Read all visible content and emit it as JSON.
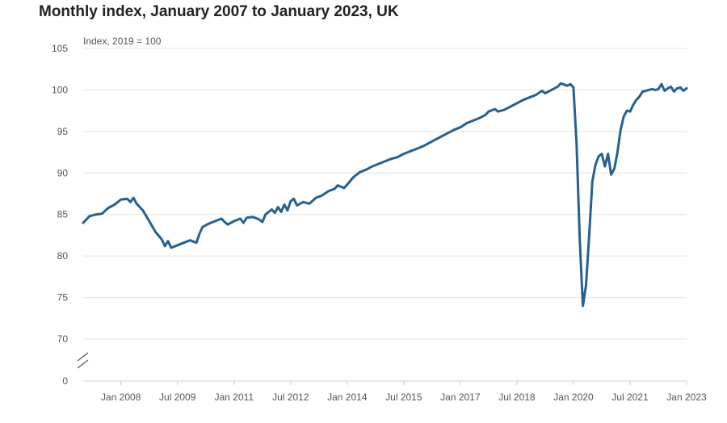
{
  "colors": {
    "line": "#27618f",
    "grid": "#e4e4e4",
    "axis": "#cccccc",
    "text": "#555555"
  },
  "chart_data": {
    "type": "line",
    "title": "Monthly index, January 2007 to January 2023, UK",
    "unit_label": "Index, 2019 = 100",
    "y_tick_labels": [
      "0",
      "70",
      "75",
      "80",
      "85",
      "90",
      "95",
      "100",
      "105"
    ],
    "y_ticks": [
      70,
      75,
      80,
      85,
      90,
      95,
      100,
      105
    ],
    "ylim_upper": [
      70,
      105
    ],
    "y_axis_break": true,
    "x_tick_labels": [
      "Jan 2008",
      "Jul 2009",
      "Jan 2011",
      "Jul 2012",
      "Jan 2014",
      "Jul 2015",
      "Jan 2017",
      "Jul 2018",
      "Jan 2020",
      "Jul 2021",
      "Jan 2023"
    ],
    "x_tick_dates": [
      "2008-01",
      "2009-07",
      "2011-01",
      "2012-07",
      "2014-01",
      "2015-07",
      "2017-01",
      "2018-07",
      "2020-01",
      "2021-07",
      "2023-01"
    ],
    "grid": true,
    "series": [
      {
        "points": [
          [
            "2007-01",
            84.0
          ],
          [
            "2007-03",
            84.8
          ],
          [
            "2007-05",
            85.0
          ],
          [
            "2007-07",
            85.1
          ],
          [
            "2007-09",
            85.8
          ],
          [
            "2007-11",
            86.2
          ],
          [
            "2008-01",
            86.8
          ],
          [
            "2008-03",
            86.9
          ],
          [
            "2008-04",
            86.5
          ],
          [
            "2008-05",
            87.0
          ],
          [
            "2008-06",
            86.3
          ],
          [
            "2008-08",
            85.5
          ],
          [
            "2008-10",
            84.2
          ],
          [
            "2008-12",
            82.9
          ],
          [
            "2009-02",
            82.0
          ],
          [
            "2009-03",
            81.2
          ],
          [
            "2009-04",
            81.8
          ],
          [
            "2009-05",
            81.0
          ],
          [
            "2009-07",
            81.3
          ],
          [
            "2009-09",
            81.6
          ],
          [
            "2009-11",
            81.9
          ],
          [
            "2010-01",
            81.6
          ],
          [
            "2010-02",
            82.7
          ],
          [
            "2010-03",
            83.5
          ],
          [
            "2010-05",
            83.9
          ],
          [
            "2010-07",
            84.2
          ],
          [
            "2010-09",
            84.5
          ],
          [
            "2010-10",
            84.1
          ],
          [
            "2010-11",
            83.8
          ],
          [
            "2011-01",
            84.2
          ],
          [
            "2011-03",
            84.5
          ],
          [
            "2011-04",
            84.0
          ],
          [
            "2011-05",
            84.6
          ],
          [
            "2011-07",
            84.7
          ],
          [
            "2011-09",
            84.4
          ],
          [
            "2011-10",
            84.1
          ],
          [
            "2011-11",
            85.0
          ],
          [
            "2012-01",
            85.6
          ],
          [
            "2012-02",
            85.2
          ],
          [
            "2012-03",
            85.9
          ],
          [
            "2012-04",
            85.3
          ],
          [
            "2012-05",
            86.2
          ],
          [
            "2012-06",
            85.5
          ],
          [
            "2012-07",
            86.6
          ],
          [
            "2012-08",
            86.9
          ],
          [
            "2012-09",
            86.1
          ],
          [
            "2012-11",
            86.5
          ],
          [
            "2013-01",
            86.3
          ],
          [
            "2013-03",
            87.0
          ],
          [
            "2013-05",
            87.3
          ],
          [
            "2013-07",
            87.8
          ],
          [
            "2013-09",
            88.1
          ],
          [
            "2013-10",
            88.5
          ],
          [
            "2013-12",
            88.2
          ],
          [
            "2014-01",
            88.6
          ],
          [
            "2014-03",
            89.5
          ],
          [
            "2014-05",
            90.1
          ],
          [
            "2014-07",
            90.4
          ],
          [
            "2014-09",
            90.8
          ],
          [
            "2014-11",
            91.1
          ],
          [
            "2015-01",
            91.4
          ],
          [
            "2015-03",
            91.7
          ],
          [
            "2015-05",
            91.9
          ],
          [
            "2015-07",
            92.3
          ],
          [
            "2015-09",
            92.6
          ],
          [
            "2015-11",
            92.9
          ],
          [
            "2016-01",
            93.2
          ],
          [
            "2016-03",
            93.6
          ],
          [
            "2016-05",
            94.0
          ],
          [
            "2016-07",
            94.4
          ],
          [
            "2016-09",
            94.8
          ],
          [
            "2016-11",
            95.2
          ],
          [
            "2017-01",
            95.5
          ],
          [
            "2017-03",
            96.0
          ],
          [
            "2017-05",
            96.3
          ],
          [
            "2017-07",
            96.6
          ],
          [
            "2017-09",
            97.0
          ],
          [
            "2017-10",
            97.4
          ],
          [
            "2017-12",
            97.7
          ],
          [
            "2018-01",
            97.4
          ],
          [
            "2018-03",
            97.6
          ],
          [
            "2018-05",
            98.0
          ],
          [
            "2018-07",
            98.4
          ],
          [
            "2018-09",
            98.8
          ],
          [
            "2018-11",
            99.1
          ],
          [
            "2019-01",
            99.4
          ],
          [
            "2019-03",
            99.9
          ],
          [
            "2019-04",
            99.6
          ],
          [
            "2019-06",
            100.0
          ],
          [
            "2019-08",
            100.4
          ],
          [
            "2019-09",
            100.8
          ],
          [
            "2019-11",
            100.5
          ],
          [
            "2019-12",
            100.7
          ],
          [
            "2020-01",
            100.3
          ],
          [
            "2020-02",
            93.5
          ],
          [
            "2020-03",
            82.0
          ],
          [
            "2020-04",
            74.0
          ],
          [
            "2020-05",
            76.5
          ],
          [
            "2020-06",
            82.5
          ],
          [
            "2020-07",
            89.0
          ],
          [
            "2020-08",
            91.0
          ],
          [
            "2020-09",
            92.0
          ],
          [
            "2020-10",
            92.3
          ],
          [
            "2020-11",
            90.8
          ],
          [
            "2020-12",
            92.3
          ],
          [
            "2021-01",
            89.8
          ],
          [
            "2021-02",
            90.5
          ],
          [
            "2021-03",
            92.5
          ],
          [
            "2021-04",
            95.2
          ],
          [
            "2021-05",
            96.8
          ],
          [
            "2021-06",
            97.5
          ],
          [
            "2021-07",
            97.4
          ],
          [
            "2021-08",
            98.2
          ],
          [
            "2021-09",
            98.8
          ],
          [
            "2021-10",
            99.2
          ],
          [
            "2021-11",
            99.8
          ],
          [
            "2021-12",
            99.9
          ],
          [
            "2022-01",
            100.0
          ],
          [
            "2022-02",
            100.1
          ],
          [
            "2022-03",
            100.0
          ],
          [
            "2022-04",
            100.1
          ],
          [
            "2022-05",
            100.7
          ],
          [
            "2022-06",
            99.9
          ],
          [
            "2022-07",
            100.2
          ],
          [
            "2022-08",
            100.4
          ],
          [
            "2022-09",
            99.8
          ],
          [
            "2022-10",
            100.2
          ],
          [
            "2022-11",
            100.3
          ],
          [
            "2022-12",
            99.9
          ],
          [
            "2023-01",
            100.2
          ]
        ]
      }
    ]
  }
}
